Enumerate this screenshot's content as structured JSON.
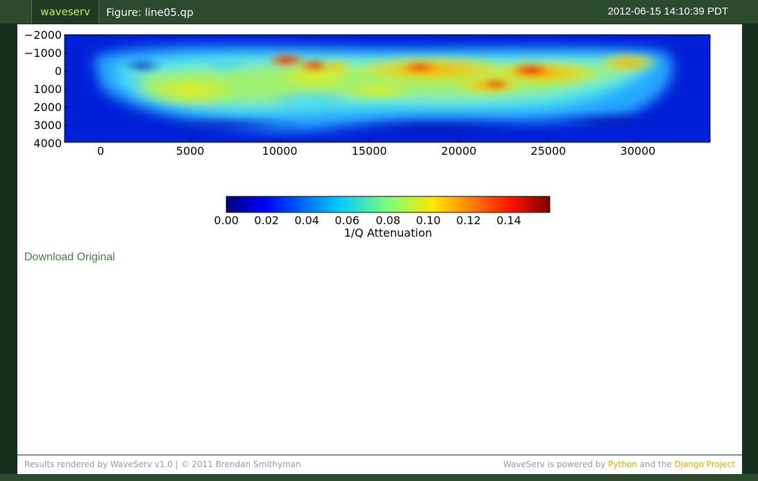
{
  "header": {
    "brand": "waveserv",
    "figure_title": "Figure: line05.qp",
    "timestamp": "2012-06-15 14:10:39 PDT"
  },
  "main": {
    "download_label": "Download Original"
  },
  "footer": {
    "left_text": "Results rendered by WaveServ v1.0 | © 2011 Brendan Smithyman",
    "right_prefix": "WaveServ is powered by ",
    "python_link": "Python",
    "right_middle": " and the ",
    "django_link": "Django Project"
  },
  "chart_data": {
    "type": "heatmap",
    "colormap": "jet",
    "x_ticks": [
      "0",
      "5000",
      "10000",
      "15000",
      "20000",
      "25000",
      "30000"
    ],
    "y_ticks": [
      "−2000",
      "−1000",
      "0",
      "1000",
      "2000",
      "3000",
      "4000"
    ],
    "xlim": [
      -2200,
      34200
    ],
    "ylim": [
      4000,
      -2000
    ],
    "colorbar": {
      "label": "1/Q Attenuation",
      "range": [
        0,
        0.16
      ],
      "ticks": [
        "0.00",
        "0.02",
        "0.04",
        "0.06",
        "0.08",
        "0.10",
        "0.12",
        "0.14"
      ]
    }
  }
}
